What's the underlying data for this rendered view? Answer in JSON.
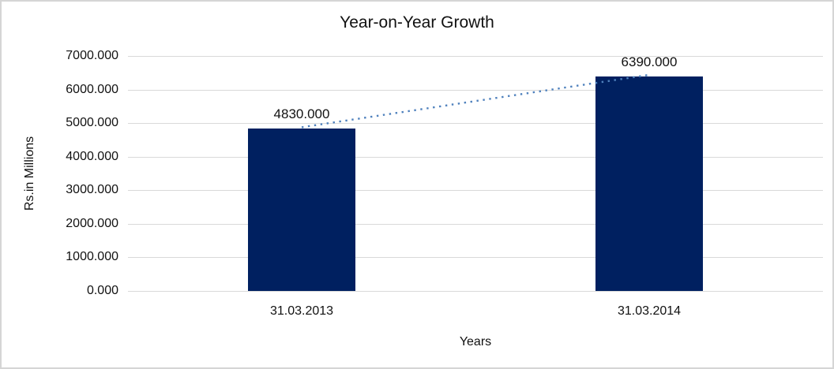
{
  "chart_data": {
    "type": "bar",
    "title": "Year-on-Year Growth",
    "xlabel": "Years",
    "ylabel": "Rs.in Millions",
    "categories": [
      "31.03.2013",
      "31.03.2014"
    ],
    "values": [
      4830,
      6390
    ],
    "data_labels": [
      "4830.000",
      "6390.000"
    ],
    "y_tick_labels": [
      "0.000",
      "1000.000",
      "2000.000",
      "3000.000",
      "4000.000",
      "5000.000",
      "6000.000",
      "7000.000"
    ],
    "ylim": [
      0,
      7000
    ],
    "grid": true,
    "legend": "none",
    "trendline": {
      "style": "dotted",
      "connects": "bar tops"
    },
    "colors": {
      "bar": "#002060",
      "trendline": "#4f81bd",
      "gridline": "#d9d9d9",
      "text": "#111111",
      "border": "#d5d5d5",
      "background": "#ffffff"
    }
  }
}
